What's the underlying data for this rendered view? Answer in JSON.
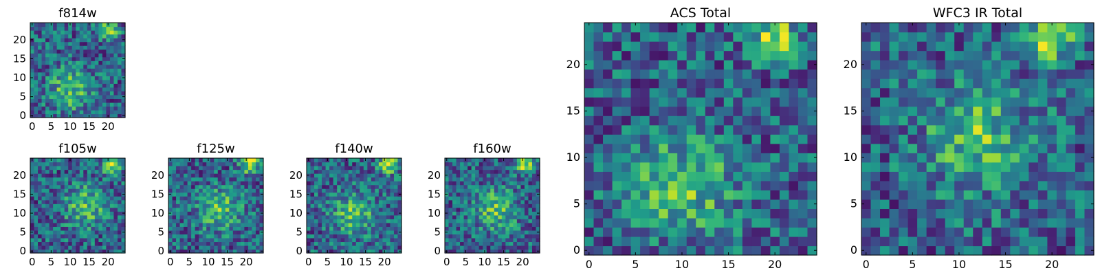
{
  "chart_data": [
    {
      "type": "heatmap",
      "title": "f814w",
      "xlabel": "",
      "ylabel": "",
      "grid_size": [
        25,
        25
      ],
      "colormap": "viridis",
      "xlim": [
        0,
        24
      ],
      "ylim": [
        0,
        24
      ],
      "xticks": [
        0,
        5,
        10,
        15,
        20
      ],
      "yticks": [
        0,
        5,
        10,
        15,
        20
      ],
      "bright_spots": [
        {
          "x": 20,
          "y": 23
        },
        {
          "x": 10,
          "y": 7
        }
      ],
      "seed": 11
    },
    {
      "type": "heatmap",
      "title": "f105w",
      "xlabel": "",
      "ylabel": "",
      "grid_size": [
        25,
        25
      ],
      "colormap": "viridis",
      "xlim": [
        0,
        24
      ],
      "ylim": [
        0,
        24
      ],
      "xticks": [
        0,
        5,
        10,
        15,
        20
      ],
      "yticks": [
        0,
        5,
        10,
        15,
        20
      ],
      "bright_spots": [
        {
          "x": 21,
          "y": 23
        },
        {
          "x": 14,
          "y": 12
        }
      ],
      "seed": 23
    },
    {
      "type": "heatmap",
      "title": "f125w",
      "xlabel": "",
      "ylabel": "",
      "grid_size": [
        25,
        25
      ],
      "colormap": "viridis",
      "xlim": [
        0,
        24
      ],
      "ylim": [
        0,
        24
      ],
      "xticks": [
        0,
        5,
        10,
        15,
        20
      ],
      "yticks": [
        0,
        5,
        10,
        15,
        20
      ],
      "bright_spots": [
        {
          "x": 21,
          "y": 23
        },
        {
          "x": 13,
          "y": 11
        }
      ],
      "seed": 37
    },
    {
      "type": "heatmap",
      "title": "f140w",
      "xlabel": "",
      "ylabel": "",
      "grid_size": [
        25,
        25
      ],
      "colormap": "viridis",
      "xlim": [
        0,
        24
      ],
      "ylim": [
        0,
        24
      ],
      "xticks": [
        0,
        5,
        10,
        15,
        20
      ],
      "yticks": [
        0,
        5,
        10,
        15,
        20
      ],
      "bright_spots": [
        {
          "x": 21,
          "y": 23
        },
        {
          "x": 12,
          "y": 10
        }
      ],
      "seed": 41
    },
    {
      "type": "heatmap",
      "title": "f160w",
      "xlabel": "",
      "ylabel": "",
      "grid_size": [
        25,
        25
      ],
      "colormap": "viridis",
      "xlim": [
        0,
        24
      ],
      "ylim": [
        0,
        24
      ],
      "xticks": [
        0,
        5,
        10,
        15,
        20
      ],
      "yticks": [
        0,
        5,
        10,
        15,
        20
      ],
      "bright_spots": [
        {
          "x": 21,
          "y": 23
        },
        {
          "x": 13,
          "y": 11
        }
      ],
      "seed": 53
    },
    {
      "type": "heatmap",
      "title": "ACS Total",
      "xlabel": "",
      "ylabel": "",
      "grid_size": [
        25,
        25
      ],
      "colormap": "viridis",
      "xlim": [
        0,
        24
      ],
      "ylim": [
        0,
        24
      ],
      "xticks": [
        0,
        5,
        10,
        15,
        20
      ],
      "yticks": [
        0,
        5,
        10,
        15,
        20
      ],
      "bright_spots": [
        {
          "x": 20,
          "y": 23
        },
        {
          "x": 10,
          "y": 7
        }
      ],
      "seed": 67
    },
    {
      "type": "heatmap",
      "title": "WFC3 IR Total",
      "xlabel": "",
      "ylabel": "",
      "grid_size": [
        25,
        25
      ],
      "colormap": "viridis",
      "xlim": [
        0,
        24
      ],
      "ylim": [
        0,
        24
      ],
      "xticks": [
        0,
        5,
        10,
        15,
        20
      ],
      "yticks": [
        0,
        5,
        10,
        15,
        20
      ],
      "bright_spots": [
        {
          "x": 20,
          "y": 23
        },
        {
          "x": 12,
          "y": 12
        }
      ],
      "seed": 79
    }
  ]
}
